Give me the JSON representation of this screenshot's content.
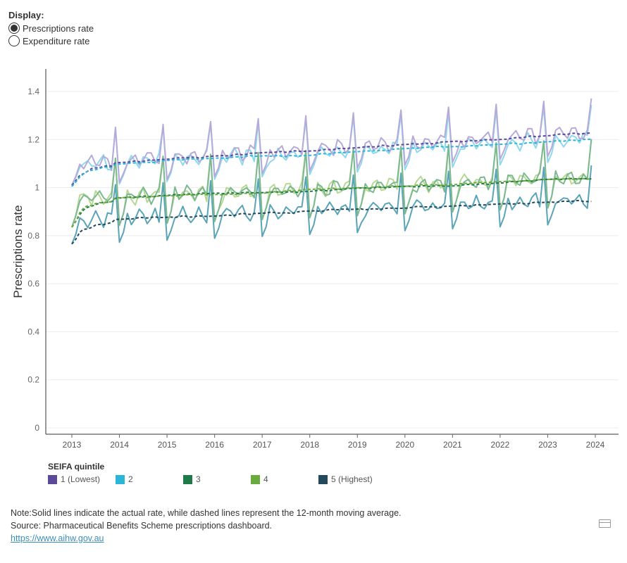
{
  "display": {
    "title": "Display:",
    "options": [
      {
        "label": "Prescriptions rate",
        "selected": true
      },
      {
        "label": "Expenditure rate",
        "selected": false
      }
    ]
  },
  "chart_data": {
    "type": "line",
    "xlabel": "",
    "ylabel": "Prescriptions rate",
    "ylim": [
      0,
      1.4
    ],
    "yticks": [
      "0",
      "0.2",
      "0.4",
      "0.6",
      "0.8",
      "1",
      "1.2",
      "1.4"
    ],
    "xticks": [
      "2013",
      "2014",
      "2015",
      "2016",
      "2017",
      "2018",
      "2019",
      "2020",
      "2021",
      "2022",
      "2023",
      "2024"
    ],
    "grid": true,
    "start": "2013-01",
    "series": [
      {
        "name": "1 (Lowest)",
        "color": "#5b4a9a",
        "actual_color": "#b7aad9",
        "base": 1.1,
        "slope": 0.012,
        "dec_peak": 0.14,
        "jan_dip": -0.09
      },
      {
        "name": "2",
        "color": "#2bb5d8",
        "actual_color": "#8fd8ee",
        "base": 1.095,
        "slope": 0.01,
        "dec_peak": 0.14,
        "jan_dip": -0.09
      },
      {
        "name": "3",
        "color": "#1f7a4a",
        "actual_color": "#7cb990",
        "base": 0.955,
        "slope": 0.008,
        "dec_peak": 0.16,
        "jan_dip": -0.12
      },
      {
        "name": "4",
        "color": "#6aab3e",
        "actual_color": "#b6d894",
        "base": 0.955,
        "slope": 0.008,
        "dec_peak": 0.16,
        "jan_dip": -0.12
      },
      {
        "name": "5 (Highest)",
        "color": "#23495c",
        "actual_color": "#5aa4b8",
        "base": 0.865,
        "slope": 0.008,
        "dec_peak": 0.14,
        "jan_dip": -0.1
      }
    ]
  },
  "legend": {
    "title": "SEIFA quintile"
  },
  "notes": {
    "line1": "Note:Solid lines indicate the actual rate, while dashed lines represent the 12-month moving average.",
    "line2": "Source: Pharmaceutical Benefits Scheme prescriptions dashboard.",
    "link": "https://www.aihw.gov.au"
  }
}
